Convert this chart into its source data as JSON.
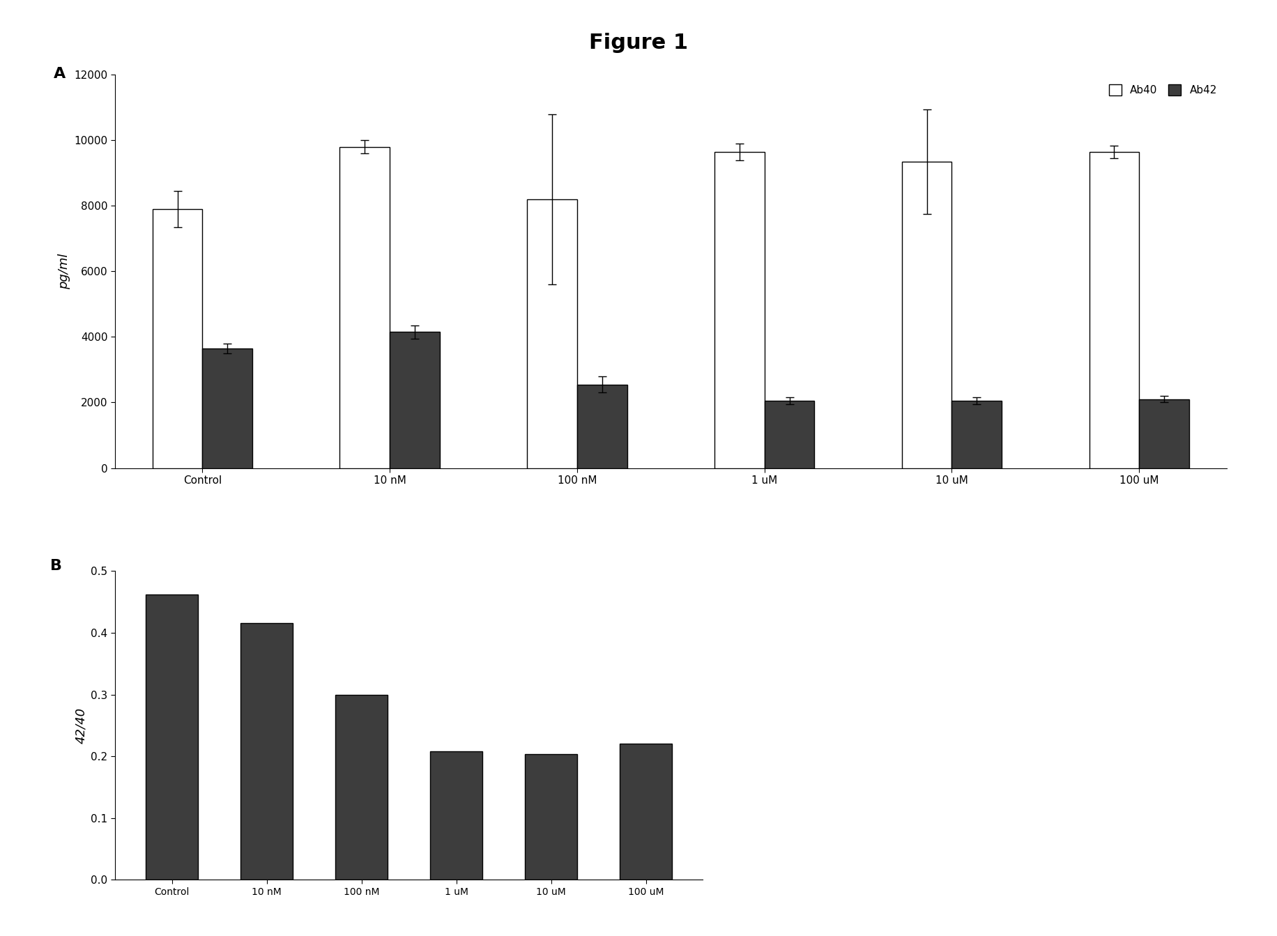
{
  "title": "Figure 1",
  "panel_A": {
    "categories": [
      "Control",
      "10 nM",
      "100 nM",
      "1 uM",
      "10 uM",
      "100 uM"
    ],
    "ab40_values": [
      7900,
      9800,
      8200,
      9650,
      9350,
      9650
    ],
    "ab42_values": [
      3650,
      4150,
      2550,
      2050,
      2050,
      2100
    ],
    "ab40_errors": [
      550,
      200,
      2600,
      250,
      1600,
      200
    ],
    "ab42_errors": [
      150,
      200,
      250,
      100,
      100,
      100
    ],
    "ylabel": "pg/ml",
    "ylim": [
      0,
      12000
    ],
    "yticks": [
      0,
      2000,
      4000,
      6000,
      8000,
      10000,
      12000
    ],
    "ab40_color": "#ffffff",
    "ab42_color": "#3d3d3d",
    "ab40_edgecolor": "#000000",
    "ab42_edgecolor": "#000000",
    "legend_ab40": "Ab40",
    "legend_ab42": "Ab42"
  },
  "panel_B": {
    "categories": [
      "Control",
      "10 nM",
      "100 nM",
      "1 uM",
      "10 uM",
      "100 uM"
    ],
    "values": [
      0.462,
      0.416,
      0.299,
      0.208,
      0.203,
      0.22
    ],
    "bar_color": "#3d3d3d",
    "bar_edgecolor": "#000000",
    "ylabel": "42/40",
    "ylim": [
      0,
      0.5
    ],
    "yticks": [
      0,
      0.1,
      0.2,
      0.3,
      0.4,
      0.5
    ]
  },
  "background_color": "#ffffff",
  "title_fontsize": 22,
  "axis_label_fontsize": 13,
  "tick_fontsize": 11,
  "panel_label_fontsize": 16
}
